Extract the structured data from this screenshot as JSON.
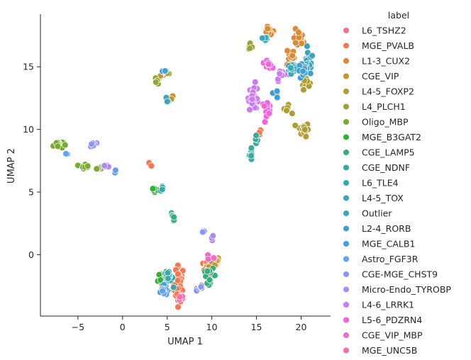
{
  "chart_data": {
    "type": "scatter",
    "title": "",
    "xlabel": "UMAP 1",
    "ylabel": "UMAP 2",
    "xlim": [
      -9.2,
      23.3
    ],
    "ylim": [
      -4.9,
      19.2
    ],
    "xticks": [
      -5,
      0,
      5,
      10,
      15,
      20
    ],
    "yticks": [
      0,
      5,
      10,
      15
    ],
    "xtick_labels": [
      "−5",
      "0",
      "5",
      "10",
      "15",
      "20"
    ],
    "ytick_labels": [
      "0",
      "5",
      "10",
      "15"
    ],
    "grid": false,
    "legend_title": "label",
    "legend_position": "right, outside",
    "series": [
      {
        "name": "L6_TSHZ2",
        "color": "#f77189",
        "clusters": [
          [
            6.3,
            -2.6,
            0.5,
            0.8,
            12
          ]
        ]
      },
      {
        "name": "MGE_PVALB",
        "color": "#f7754f",
        "clusters": [
          [
            6.3,
            -2.3,
            0.5,
            1.3,
            40
          ],
          [
            3.2,
            7.2,
            0.2,
            0.2,
            3
          ],
          [
            15.2,
            9.7,
            0.3,
            0.3,
            3
          ],
          [
            9.2,
            -0.9,
            0.5,
            0.4,
            6
          ]
        ]
      },
      {
        "name": "L1-3_CUX2",
        "color": "#dc8932",
        "clusters": [
          [
            16.4,
            17.8,
            0.5,
            0.3,
            15
          ],
          [
            19.7,
            17.2,
            0.5,
            0.7,
            25
          ],
          [
            18.8,
            15.8,
            0.4,
            0.8,
            18
          ]
        ]
      },
      {
        "name": "CGE_VIP",
        "color": "#c39532",
        "clusters": [
          [
            10.3,
            -0.6,
            0.5,
            0.4,
            20
          ],
          [
            5.5,
            12.6,
            0.2,
            0.3,
            4
          ],
          [
            4.3,
            14.3,
            0.4,
            0.3,
            6
          ],
          [
            9.6,
            -1.1,
            0.4,
            0.3,
            8
          ]
        ]
      },
      {
        "name": "L4-5_FOXP2",
        "color": "#ae9d31",
        "clusters": [
          [
            20.3,
            10.0,
            0.5,
            0.5,
            20
          ],
          [
            20.5,
            13.8,
            0.4,
            0.5,
            10
          ],
          [
            18.4,
            11.6,
            0.4,
            0.3,
            8
          ]
        ]
      },
      {
        "name": "L4_PLCH1",
        "color": "#97a431",
        "clusters": [
          [
            14.3,
            16.5,
            0.3,
            0.3,
            6
          ],
          [
            3.9,
            13.9,
            0.2,
            0.3,
            4
          ],
          [
            5.0,
            14.5,
            0.2,
            0.2,
            3
          ]
        ]
      },
      {
        "name": "Oligo_MBP",
        "color": "#77ab31",
        "clusters": [
          [
            -7.2,
            8.8,
            0.5,
            0.3,
            20
          ],
          [
            -2.5,
            6.9,
            0.5,
            0.1,
            10
          ],
          [
            -4.2,
            7.1,
            0.5,
            0.2,
            8
          ]
        ]
      },
      {
        "name": "MGE_B3GAT2",
        "color": "#33b039",
        "clusters": [
          [
            4.6,
            -2.0,
            0.6,
            0.5,
            20
          ],
          [
            3.6,
            5.2,
            0.4,
            0.3,
            6
          ]
        ]
      },
      {
        "name": "CGE_LAMP5",
        "color": "#36ad7d",
        "clusters": [
          [
            9.8,
            -1.7,
            0.6,
            0.5,
            20
          ],
          [
            5.6,
            3.0,
            0.3,
            0.3,
            6
          ]
        ]
      },
      {
        "name": "CGE_NDNF",
        "color": "#37ab9a",
        "clusters": [
          [
            14.4,
            8.0,
            0.2,
            0.4,
            8
          ],
          [
            14.9,
            9.2,
            0.2,
            0.3,
            4
          ]
        ]
      },
      {
        "name": "L6_TLE4",
        "color": "#38a9a9",
        "clusters": [
          [
            5.1,
            -1.9,
            0.5,
            0.5,
            15
          ],
          [
            4.5,
            5.3,
            0.2,
            0.2,
            4
          ]
        ]
      },
      {
        "name": "L4-5_TOX",
        "color": "#39a7b4",
        "clusters": [
          [
            19.0,
            14.8,
            0.5,
            0.6,
            20
          ],
          [
            16.0,
            17.3,
            0.3,
            0.3,
            8
          ]
        ]
      },
      {
        "name": "Outlier",
        "color": "#3ba3c1",
        "clusters": [
          [
            20.8,
            15.2,
            0.5,
            0.8,
            25
          ],
          [
            5.0,
            12.3,
            0.2,
            0.3,
            4
          ]
        ]
      },
      {
        "name": "L2-4_RORB",
        "color": "#3da0d0",
        "clusters": [
          [
            20.2,
            14.6,
            0.5,
            0.6,
            20
          ],
          [
            17.0,
            12.8,
            0.4,
            0.3,
            6
          ]
        ]
      },
      {
        "name": "MGE_CALB1",
        "color": "#41a0e1",
        "clusters": [
          [
            4.8,
            -2.8,
            0.4,
            0.4,
            12
          ],
          [
            4.6,
            14.6,
            0.3,
            0.1,
            5
          ]
        ]
      },
      {
        "name": "Astro_FGF3R",
        "color": "#61a0f3",
        "clusters": [
          [
            -6.3,
            8.0,
            0.2,
            0.1,
            3
          ],
          [
            -0.8,
            6.6,
            0.1,
            0.1,
            2
          ],
          [
            4.7,
            -3.0,
            0.4,
            0.3,
            6
          ]
        ]
      },
      {
        "name": "CGE-MGE_CHST9",
        "color": "#8e94f4",
        "clusters": [
          [
            8.8,
            -2.6,
            0.4,
            0.2,
            8
          ],
          [
            -3.3,
            8.8,
            0.3,
            0.3,
            8
          ],
          [
            9.1,
            1.9,
            0.2,
            0.1,
            3
          ]
        ]
      },
      {
        "name": "Micro-Endo_TYROBP",
        "color": "#ad8bf4",
        "clusters": [
          [
            -1.7,
            7.0,
            0.2,
            0.2,
            4
          ],
          [
            10.0,
            1.3,
            0.2,
            0.2,
            3
          ]
        ]
      },
      {
        "name": "L4-6_LRRK1",
        "color": "#cc79f4",
        "clusters": [
          [
            14.7,
            12.6,
            0.5,
            0.9,
            30
          ],
          [
            17.8,
            14.3,
            0.5,
            0.4,
            10
          ]
        ]
      },
      {
        "name": "L5-6_PDZRN4",
        "color": "#f462e1",
        "clusters": [
          [
            16.1,
            11.7,
            0.5,
            0.5,
            15
          ],
          [
            16.3,
            15.3,
            0.4,
            0.4,
            10
          ]
        ]
      },
      {
        "name": "CGE_VIP_MBP",
        "color": "#f56ac6",
        "clusters": [
          [
            9.7,
            -0.4,
            0.3,
            0.3,
            6
          ]
        ]
      },
      {
        "name": "MGE_UNC5B",
        "color": "#f56ea9",
        "clusters": [
          [
            6.5,
            -3.4,
            0.3,
            0.3,
            8
          ]
        ]
      }
    ]
  }
}
